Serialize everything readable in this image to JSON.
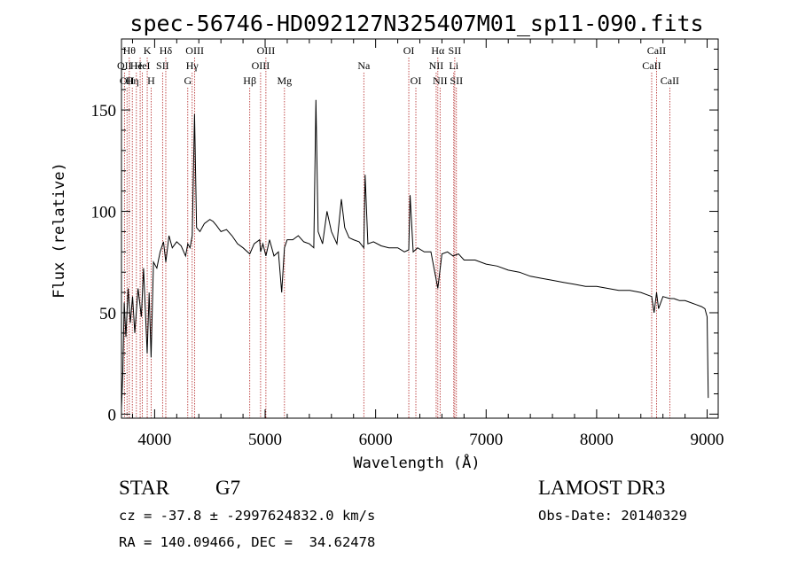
{
  "chart_data": {
    "type": "line",
    "title": "spec-56746-HD092127N325407M01_sp11-090.fits",
    "xlabel": "Wavelength (Å)",
    "ylabel": "Flux (relative)",
    "xlim": [
      3700,
      9100
    ],
    "ylim": [
      -2,
      185
    ],
    "x_ticks": [
      4000,
      5000,
      6000,
      7000,
      8000,
      9000
    ],
    "y_ticks": [
      0,
      50,
      100,
      150
    ],
    "x_tick_labels": [
      "4000",
      "5000",
      "6000",
      "7000",
      "8000",
      "9000"
    ],
    "y_tick_labels": [
      "0",
      "50",
      "100",
      "150"
    ],
    "series": [
      {
        "name": "flux",
        "x": [
          3700,
          3712,
          3725,
          3740,
          3760,
          3780,
          3800,
          3820,
          3850,
          3880,
          3900,
          3933,
          3950,
          3968,
          3990,
          4020,
          4050,
          4080,
          4101,
          4130,
          4160,
          4200,
          4240,
          4280,
          4300,
          4320,
          4340,
          4361,
          4380,
          4410,
          4450,
          4500,
          4530,
          4560,
          4600,
          4650,
          4700,
          4750,
          4800,
          4861,
          4900,
          4950,
          4959,
          4980,
          5007,
          5040,
          5080,
          5120,
          5150,
          5175,
          5200,
          5250,
          5300,
          5350,
          5400,
          5440,
          5460,
          5480,
          5520,
          5560,
          5600,
          5650,
          5690,
          5720,
          5760,
          5800,
          5850,
          5893,
          5905,
          5930,
          5980,
          6050,
          6120,
          6200,
          6260,
          6300,
          6312,
          6340,
          6380,
          6440,
          6500,
          6563,
          6600,
          6650,
          6700,
          6750,
          6800,
          6900,
          7000,
          7100,
          7200,
          7300,
          7400,
          7500,
          7600,
          7700,
          7800,
          7900,
          8000,
          8100,
          8200,
          8300,
          8400,
          8498,
          8520,
          8542,
          8560,
          8600,
          8662,
          8700,
          8750,
          8800,
          8850,
          8900,
          8950,
          8980,
          9000,
          9010
        ],
        "values": [
          3,
          20,
          55,
          38,
          62,
          45,
          58,
          40,
          62,
          48,
          72,
          30,
          60,
          28,
          75,
          72,
          80,
          85,
          75,
          88,
          82,
          85,
          83,
          78,
          84,
          82,
          88,
          148,
          92,
          90,
          94,
          96,
          95,
          93,
          90,
          91,
          88,
          84,
          82,
          79,
          84,
          86,
          80,
          84,
          78,
          86,
          78,
          80,
          60,
          82,
          86,
          86,
          88,
          85,
          84,
          82,
          155,
          90,
          84,
          100,
          90,
          84,
          106,
          92,
          87,
          86,
          85,
          82,
          118,
          84,
          85,
          83,
          82,
          82,
          80,
          81,
          108,
          80,
          82,
          80,
          80,
          62,
          79,
          80,
          78,
          79,
          76,
          76,
          74,
          73,
          71,
          70,
          68,
          67,
          66,
          65,
          64,
          63,
          63,
          62,
          61,
          61,
          60,
          58,
          50,
          60,
          52,
          58,
          57,
          57,
          56,
          56,
          55,
          54,
          53,
          52,
          48,
          8
        ]
      }
    ],
    "spectral_lines": [
      {
        "wavelength": 3727,
        "label": "OII",
        "row": 1
      },
      {
        "wavelength": 3750,
        "label": "OII",
        "row": 2
      },
      {
        "wavelength": 3771,
        "label": "Hθ",
        "row": 0
      },
      {
        "wavelength": 3798,
        "label": "Hη",
        "row": 2
      },
      {
        "wavelength": 3835,
        "label": "He",
        "row": 1
      },
      {
        "wavelength": 3869,
        "label": "",
        "row": 0
      },
      {
        "wavelength": 3889,
        "label": "HeI",
        "row": 1
      },
      {
        "wavelength": 3933,
        "label": "K",
        "row": 0
      },
      {
        "wavelength": 3968,
        "label": "H",
        "row": 2
      },
      {
        "wavelength": 4072,
        "label": "SII",
        "row": 1
      },
      {
        "wavelength": 4101,
        "label": "Hδ",
        "row": 0
      },
      {
        "wavelength": 4300,
        "label": "G",
        "row": 2
      },
      {
        "wavelength": 4340,
        "label": "Hγ",
        "row": 1
      },
      {
        "wavelength": 4363,
        "label": "OIII",
        "row": 0
      },
      {
        "wavelength": 4861,
        "label": "Hβ",
        "row": 2
      },
      {
        "wavelength": 4959,
        "label": "OIII",
        "row": 1
      },
      {
        "wavelength": 5007,
        "label": "OIII",
        "row": 0
      },
      {
        "wavelength": 5175,
        "label": "Mg",
        "row": 2
      },
      {
        "wavelength": 5893,
        "label": "Na",
        "row": 1
      },
      {
        "wavelength": 6300,
        "label": "OI",
        "row": 0
      },
      {
        "wavelength": 6364,
        "label": "OI",
        "row": 2
      },
      {
        "wavelength": 6548,
        "label": "NII",
        "row": 1
      },
      {
        "wavelength": 6563,
        "label": "Hα",
        "row": 0
      },
      {
        "wavelength": 6583,
        "label": "NII",
        "row": 2
      },
      {
        "wavelength": 6707,
        "label": "Li",
        "row": 1
      },
      {
        "wavelength": 6716,
        "label": "SII",
        "row": 0
      },
      {
        "wavelength": 6731,
        "label": "SII",
        "row": 2
      },
      {
        "wavelength": 8498,
        "label": "CaII",
        "row": 1
      },
      {
        "wavelength": 8542,
        "label": "CaII",
        "row": 0
      },
      {
        "wavelength": 8662,
        "label": "CaII",
        "row": 2
      }
    ]
  },
  "info": {
    "class_label": "STAR",
    "subclass": "G7",
    "survey": "LAMOST DR3",
    "cz_line": "cz = -37.8 ± -2997624832.0 km/s",
    "obs_date": "Obs-Date: 20140329",
    "coords": "RA = 140.09466, DEC =  34.62478"
  },
  "colors": {
    "spectrum": "#000000",
    "line_marker": "#b22222"
  }
}
